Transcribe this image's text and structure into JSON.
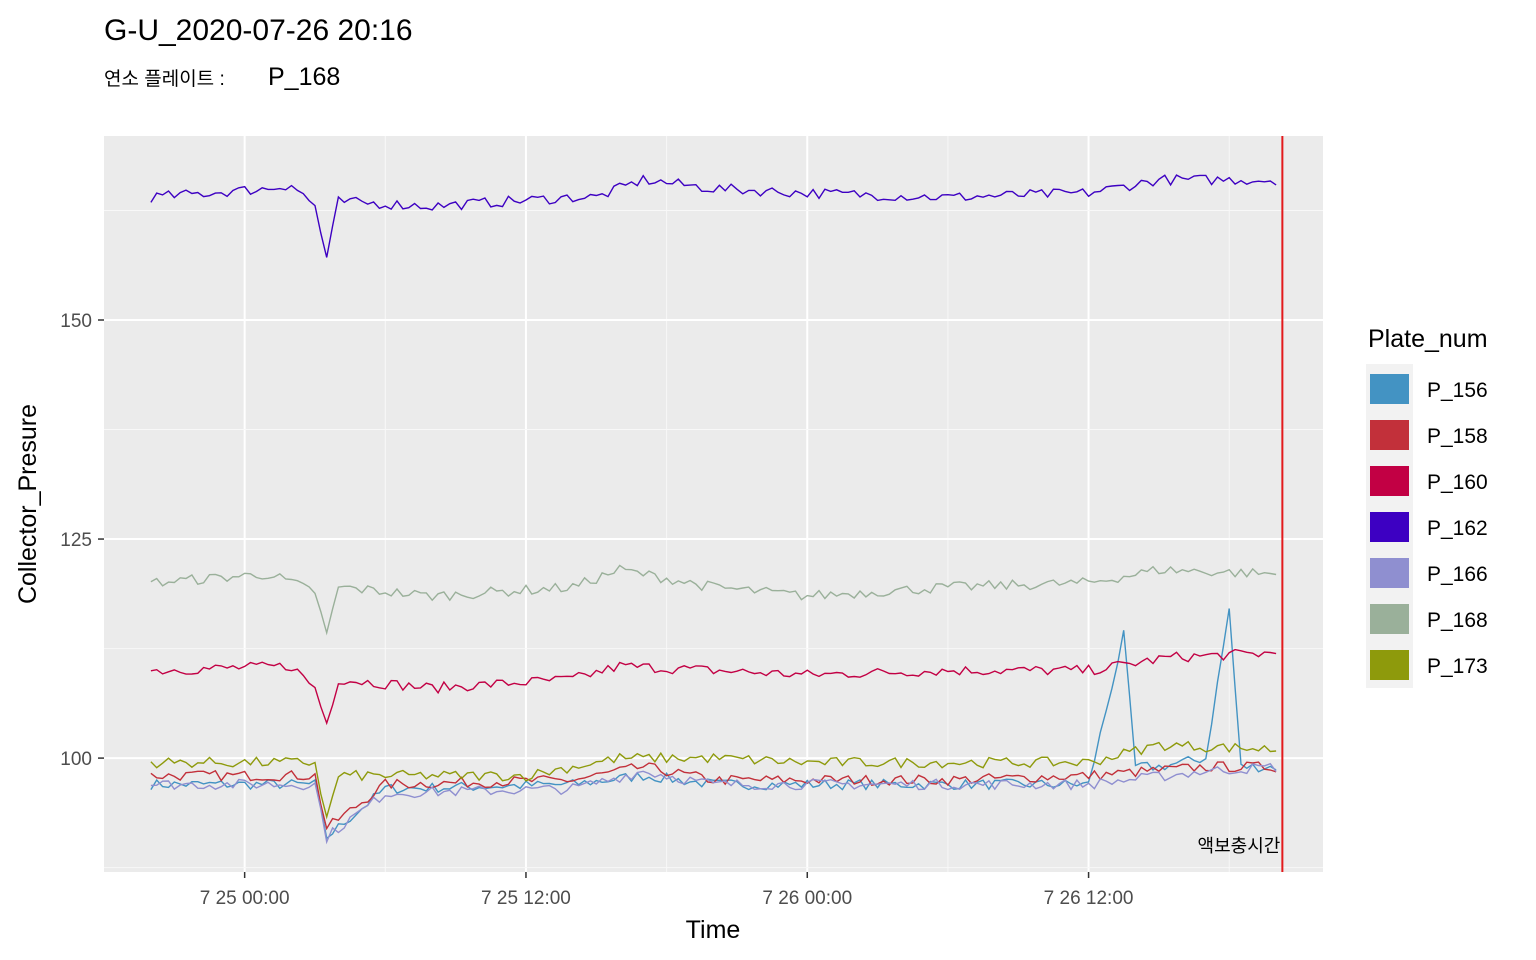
{
  "chart_data": {
    "type": "line",
    "title": "G-U_2020-07-26 20:16",
    "subtitle_label": "연소 플레이트 :",
    "subtitle_value": "P_168",
    "xlabel": "Time",
    "ylabel": "Collector_Presure",
    "x_ticks": [
      "7 25 00:00",
      "7 25 12:00",
      "7 26 00:00",
      "7 26 12:00"
    ],
    "y_ticks": [
      100,
      125,
      150
    ],
    "xlim": [
      "2020-07-24 18:00",
      "2020-07-26 22:00"
    ],
    "ylim": [
      87,
      171
    ],
    "grid": true,
    "legend_title": "Plate_num",
    "legend_position": "right",
    "annotation": {
      "text": "액보충시간",
      "x": "2020-07-26 20:16",
      "color": "#e31a1c"
    },
    "series": [
      {
        "name": "P_156",
        "color": "#4393c3",
        "x": [
          "2020-07-24 20:00",
          "2020-07-25 03:00",
          "2020-07-25 03:30",
          "2020-07-25 06:00",
          "2020-07-25 14:00",
          "2020-07-25 17:00",
          "2020-07-25 20:00",
          "2020-07-26 00:00",
          "2020-07-26 06:00",
          "2020-07-26 12:00",
          "2020-07-26 13:30",
          "2020-07-26 14:00",
          "2020-07-26 15:00",
          "2020-07-26 17:00",
          "2020-07-26 18:00",
          "2020-07-26 18:30",
          "2020-07-26 20:00"
        ],
        "values": [
          97,
          97,
          91,
          96.5,
          97,
          98,
          97,
          97,
          97,
          97,
          114,
          99,
          99,
          100,
          117,
          99,
          99
        ]
      },
      {
        "name": "P_158",
        "color": "#c2303a",
        "x": [
          "2020-07-24 20:00",
          "2020-07-25 03:00",
          "2020-07-25 03:30",
          "2020-07-25 06:00",
          "2020-07-25 14:00",
          "2020-07-25 17:00",
          "2020-07-25 20:00",
          "2020-07-26 00:00",
          "2020-07-26 06:00",
          "2020-07-26 12:00",
          "2020-07-26 17:00",
          "2020-07-26 20:00"
        ],
        "values": [
          98,
          98,
          92,
          97,
          97.5,
          99,
          97.5,
          97.5,
          97.5,
          98,
          99,
          99
        ]
      },
      {
        "name": "P_160",
        "color": "#c20044",
        "x": [
          "2020-07-24 20:00",
          "2020-07-25 02:00",
          "2020-07-25 03:00",
          "2020-07-25 03:30",
          "2020-07-25 04:00",
          "2020-07-25 08:00",
          "2020-07-25 14:00",
          "2020-07-25 16:00",
          "2020-07-25 20:00",
          "2020-07-26 00:00",
          "2020-07-26 06:00",
          "2020-07-26 12:00",
          "2020-07-26 15:30",
          "2020-07-26 20:00"
        ],
        "values": [
          110,
          110.5,
          108,
          104,
          109,
          108,
          109,
          110.5,
          110,
          109.5,
          110,
          110,
          111.5,
          112
        ]
      },
      {
        "name": "P_162",
        "color": "#3d00c2",
        "x": [
          "2020-07-24 20:00",
          "2020-07-25 01:00",
          "2020-07-25 02:00",
          "2020-07-25 03:00",
          "2020-07-25 03:30",
          "2020-07-25 04:00",
          "2020-07-25 08:00",
          "2020-07-25 14:00",
          "2020-07-25 15:00",
          "2020-07-25 17:00",
          "2020-07-25 20:00",
          "2020-07-26 00:00",
          "2020-07-26 06:00",
          "2020-07-26 12:00",
          "2020-07-26 15:00",
          "2020-07-26 20:00"
        ],
        "values": [
          164,
          165,
          165.5,
          163,
          157,
          163.5,
          163,
          164,
          164,
          166,
          165,
          164.5,
          164,
          164.5,
          166,
          166
        ]
      },
      {
        "name": "P_166",
        "color": "#8f8fd0",
        "x": [
          "2020-07-24 20:00",
          "2020-07-25 03:00",
          "2020-07-25 03:30",
          "2020-07-25 06:00",
          "2020-07-25 14:00",
          "2020-07-25 17:00",
          "2020-07-25 20:00",
          "2020-07-26 00:00",
          "2020-07-26 06:00",
          "2020-07-26 12:00",
          "2020-07-26 17:00",
          "2020-07-26 20:00"
        ],
        "values": [
          97,
          97,
          91,
          96,
          96.5,
          98.5,
          97,
          97,
          97,
          97,
          98.5,
          99
        ]
      },
      {
        "name": "P_168",
        "color": "#9ab09a",
        "x": [
          "2020-07-24 20:00",
          "2020-07-25 01:00",
          "2020-07-25 03:00",
          "2020-07-25 03:30",
          "2020-07-25 04:00",
          "2020-07-25 08:00",
          "2020-07-25 14:00",
          "2020-07-25 16:00",
          "2020-07-25 20:00",
          "2020-07-26 00:00",
          "2020-07-26 06:00",
          "2020-07-26 12:00",
          "2020-07-26 15:00",
          "2020-07-26 20:00"
        ],
        "values": [
          120,
          121,
          119,
          114,
          119.5,
          118.5,
          119.5,
          121.5,
          119.5,
          118.5,
          119.5,
          120,
          121.5,
          121
        ]
      },
      {
        "name": "P_173",
        "color": "#8e9a0c",
        "x": [
          "2020-07-24 20:00",
          "2020-07-25 03:00",
          "2020-07-25 03:30",
          "2020-07-25 04:00",
          "2020-07-25 12:00",
          "2020-07-25 16:00",
          "2020-07-25 20:00",
          "2020-07-26 00:00",
          "2020-07-26 06:00",
          "2020-07-26 12:00",
          "2020-07-26 15:00",
          "2020-07-26 20:00"
        ],
        "values": [
          99.5,
          99.5,
          93,
          98,
          98,
          100,
          100,
          99.5,
          99.5,
          99.5,
          101.5,
          101
        ]
      }
    ]
  }
}
